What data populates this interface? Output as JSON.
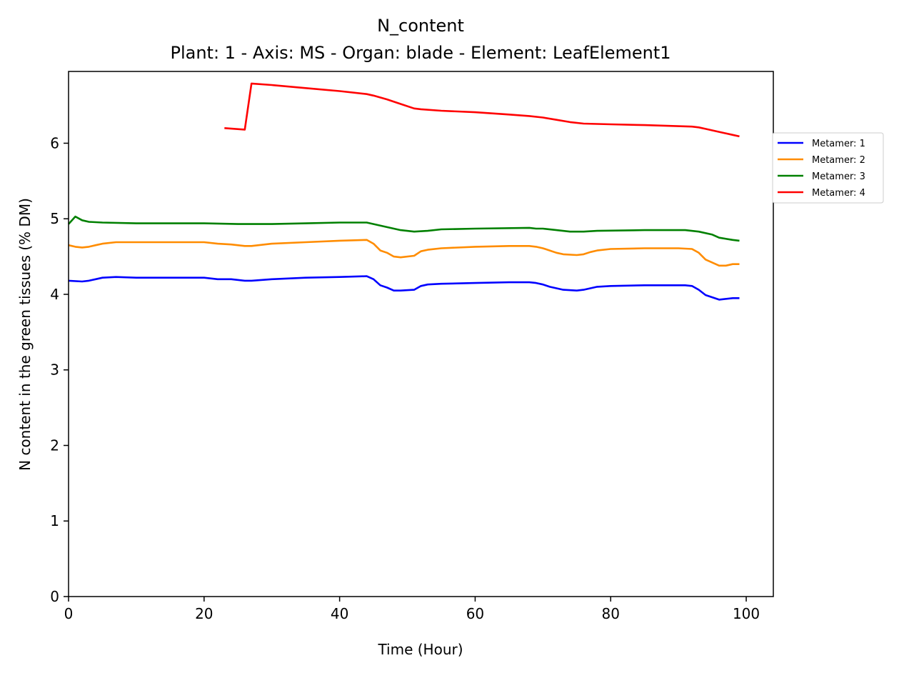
{
  "chart_data": {
    "type": "line",
    "title": "N_content",
    "subtitle": "Plant: 1 - Axis: MS - Organ: blade - Element: LeafElement1",
    "xlabel": "Time (Hour)",
    "ylabel": "N content in the green tissues (% DM)",
    "xlim": [
      0,
      104
    ],
    "ylim": [
      0,
      6.95
    ],
    "xticks": [
      0,
      20,
      40,
      60,
      80,
      100
    ],
    "yticks": [
      0,
      1,
      2,
      3,
      4,
      5,
      6
    ],
    "grid": false,
    "legend_position": "right, outside plot area",
    "series": [
      {
        "name": "Metamer: 1",
        "color": "#0000ff",
        "points": [
          [
            0,
            4.18
          ],
          [
            2,
            4.17
          ],
          [
            3,
            4.18
          ],
          [
            4,
            4.2
          ],
          [
            5,
            4.22
          ],
          [
            7,
            4.23
          ],
          [
            10,
            4.22
          ],
          [
            20,
            4.22
          ],
          [
            22,
            4.2
          ],
          [
            24,
            4.2
          ],
          [
            26,
            4.18
          ],
          [
            27,
            4.18
          ],
          [
            30,
            4.2
          ],
          [
            35,
            4.22
          ],
          [
            40,
            4.23
          ],
          [
            44,
            4.24
          ],
          [
            45,
            4.2
          ],
          [
            46,
            4.12
          ],
          [
            47,
            4.09
          ],
          [
            48,
            4.05
          ],
          [
            49,
            4.05
          ],
          [
            51,
            4.06
          ],
          [
            52,
            4.11
          ],
          [
            53,
            4.13
          ],
          [
            55,
            4.14
          ],
          [
            60,
            4.15
          ],
          [
            65,
            4.16
          ],
          [
            68,
            4.16
          ],
          [
            69,
            4.15
          ],
          [
            70,
            4.13
          ],
          [
            71,
            4.1
          ],
          [
            72,
            4.08
          ],
          [
            73,
            4.06
          ],
          [
            75,
            4.05
          ],
          [
            76,
            4.06
          ],
          [
            77,
            4.08
          ],
          [
            78,
            4.1
          ],
          [
            80,
            4.11
          ],
          [
            85,
            4.12
          ],
          [
            91,
            4.12
          ],
          [
            92,
            4.11
          ],
          [
            93,
            4.06
          ],
          [
            94,
            3.99
          ],
          [
            96,
            3.93
          ],
          [
            98,
            3.95
          ],
          [
            99,
            3.95
          ]
        ]
      },
      {
        "name": "Metamer: 2",
        "color": "#ff8c00",
        "points": [
          [
            0,
            4.65
          ],
          [
            1,
            4.63
          ],
          [
            2,
            4.62
          ],
          [
            3,
            4.63
          ],
          [
            4,
            4.65
          ],
          [
            5,
            4.67
          ],
          [
            7,
            4.69
          ],
          [
            10,
            4.69
          ],
          [
            15,
            4.69
          ],
          [
            20,
            4.69
          ],
          [
            22,
            4.67
          ],
          [
            24,
            4.66
          ],
          [
            26,
            4.64
          ],
          [
            27,
            4.64
          ],
          [
            30,
            4.67
          ],
          [
            35,
            4.69
          ],
          [
            40,
            4.71
          ],
          [
            44,
            4.72
          ],
          [
            45,
            4.67
          ],
          [
            46,
            4.58
          ],
          [
            47,
            4.55
          ],
          [
            48,
            4.5
          ],
          [
            49,
            4.49
          ],
          [
            51,
            4.51
          ],
          [
            52,
            4.57
          ],
          [
            53,
            4.59
          ],
          [
            55,
            4.61
          ],
          [
            60,
            4.63
          ],
          [
            65,
            4.64
          ],
          [
            68,
            4.64
          ],
          [
            69,
            4.63
          ],
          [
            70,
            4.61
          ],
          [
            71,
            4.58
          ],
          [
            72,
            4.55
          ],
          [
            73,
            4.53
          ],
          [
            75,
            4.52
          ],
          [
            76,
            4.53
          ],
          [
            77,
            4.56
          ],
          [
            78,
            4.58
          ],
          [
            80,
            4.6
          ],
          [
            85,
            4.61
          ],
          [
            90,
            4.61
          ],
          [
            92,
            4.6
          ],
          [
            93,
            4.55
          ],
          [
            94,
            4.46
          ],
          [
            96,
            4.38
          ],
          [
            97,
            4.38
          ],
          [
            98,
            4.4
          ],
          [
            99,
            4.4
          ]
        ]
      },
      {
        "name": "Metamer: 3",
        "color": "#008000",
        "points": [
          [
            0,
            4.93
          ],
          [
            1,
            5.03
          ],
          [
            2,
            4.98
          ],
          [
            3,
            4.96
          ],
          [
            5,
            4.95
          ],
          [
            10,
            4.94
          ],
          [
            20,
            4.94
          ],
          [
            25,
            4.93
          ],
          [
            27,
            4.93
          ],
          [
            30,
            4.93
          ],
          [
            35,
            4.94
          ],
          [
            40,
            4.95
          ],
          [
            44,
            4.95
          ],
          [
            45,
            4.93
          ],
          [
            47,
            4.89
          ],
          [
            49,
            4.85
          ],
          [
            51,
            4.83
          ],
          [
            53,
            4.84
          ],
          [
            55,
            4.86
          ],
          [
            60,
            4.87
          ],
          [
            68,
            4.88
          ],
          [
            69,
            4.87
          ],
          [
            70,
            4.87
          ],
          [
            72,
            4.85
          ],
          [
            74,
            4.83
          ],
          [
            76,
            4.83
          ],
          [
            78,
            4.84
          ],
          [
            85,
            4.85
          ],
          [
            91,
            4.85
          ],
          [
            93,
            4.83
          ],
          [
            95,
            4.79
          ],
          [
            96,
            4.75
          ],
          [
            98,
            4.72
          ],
          [
            99,
            4.71
          ]
        ]
      },
      {
        "name": "Metamer: 4",
        "color": "#ff0000",
        "points": [
          [
            23,
            6.2
          ],
          [
            26,
            6.18
          ],
          [
            27,
            6.79
          ],
          [
            30,
            6.77
          ],
          [
            35,
            6.73
          ],
          [
            40,
            6.69
          ],
          [
            44,
            6.65
          ],
          [
            45,
            6.63
          ],
          [
            47,
            6.58
          ],
          [
            49,
            6.52
          ],
          [
            51,
            6.46
          ],
          [
            52,
            6.45
          ],
          [
            55,
            6.43
          ],
          [
            60,
            6.41
          ],
          [
            65,
            6.38
          ],
          [
            68,
            6.36
          ],
          [
            70,
            6.34
          ],
          [
            72,
            6.31
          ],
          [
            74,
            6.28
          ],
          [
            76,
            6.26
          ],
          [
            80,
            6.25
          ],
          [
            85,
            6.24
          ],
          [
            92,
            6.22
          ],
          [
            93,
            6.21
          ],
          [
            94,
            6.19
          ],
          [
            96,
            6.15
          ],
          [
            98,
            6.11
          ],
          [
            99,
            6.09
          ]
        ]
      }
    ]
  }
}
